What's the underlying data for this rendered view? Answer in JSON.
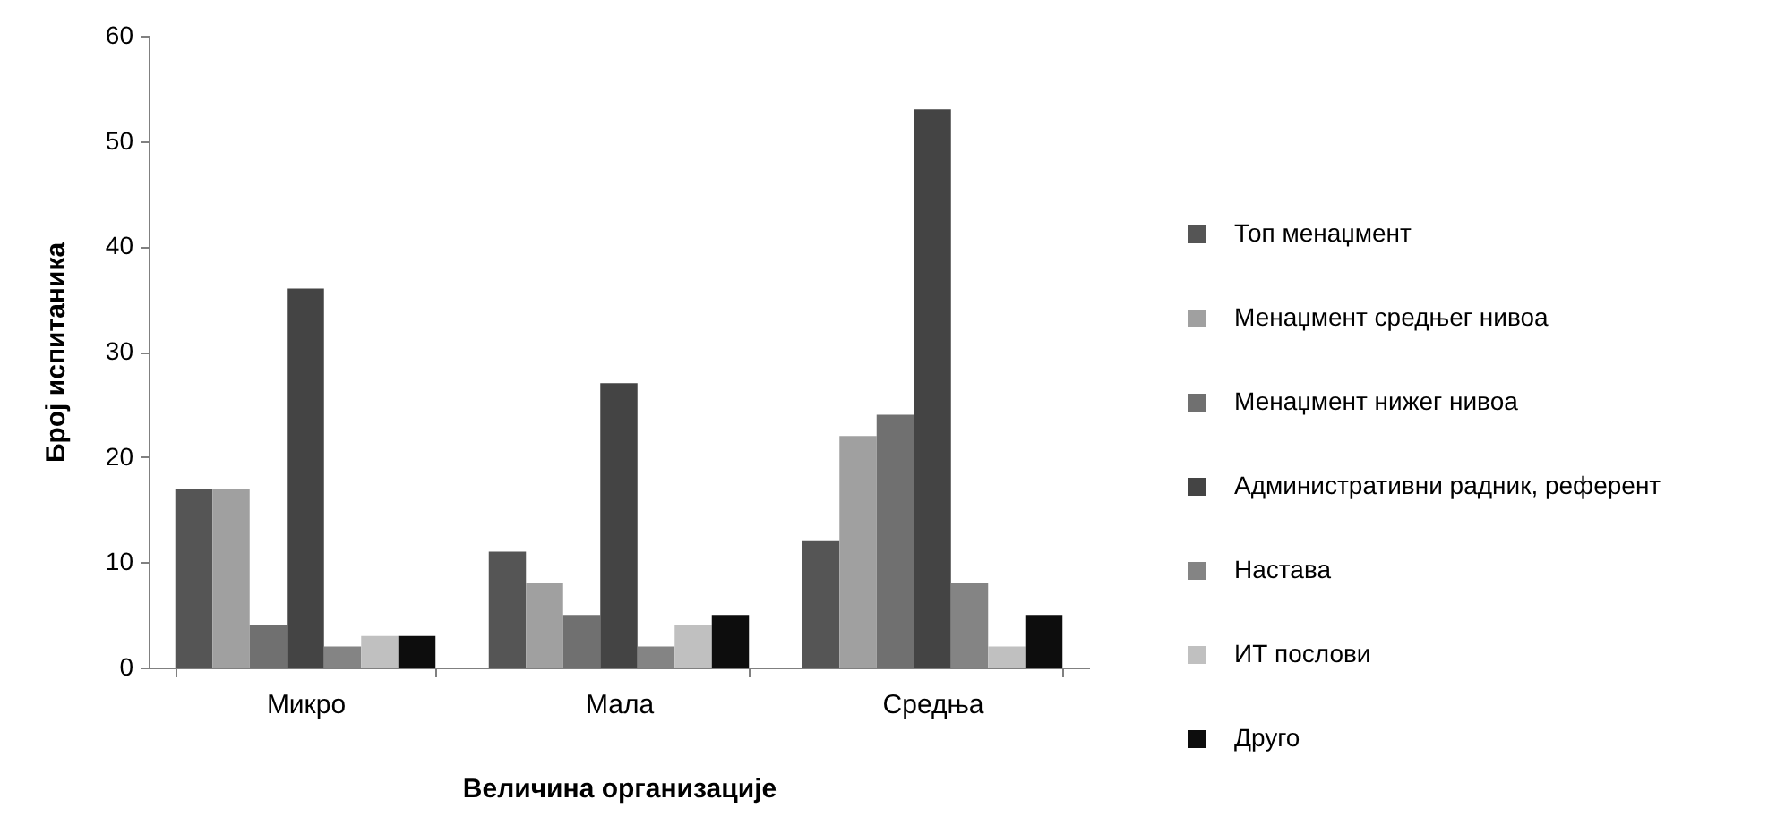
{
  "chart_data": {
    "type": "bar",
    "xlabel": "Величина организације",
    "ylabel": "Број испитаника",
    "categories": [
      "Микро",
      "Мала",
      "Средња"
    ],
    "ylim": [
      0,
      60
    ],
    "yticks": [
      0,
      10,
      20,
      30,
      40,
      50,
      60
    ],
    "legend": "right",
    "series": [
      {
        "name": "Топ менаџмент",
        "color": "#555555",
        "values": [
          17,
          11,
          12
        ]
      },
      {
        "name": "Менаџмент средњег нивоа",
        "color": "#a0a0a0",
        "values": [
          17,
          8,
          22
        ]
      },
      {
        "name": "Менаџмент нижег нивоа",
        "color": "#707070",
        "values": [
          4,
          5,
          24
        ]
      },
      {
        "name": "Административни радник, референт",
        "color": "#444444",
        "values": [
          36,
          27,
          53
        ]
      },
      {
        "name": "Настава",
        "color": "#848484",
        "values": [
          2,
          2,
          8
        ]
      },
      {
        "name": "ИТ послови",
        "color": "#c0c0c0",
        "values": [
          3,
          4,
          2
        ]
      },
      {
        "name": "Друго",
        "color": "#0d0d0d",
        "values": [
          3,
          5,
          5
        ]
      }
    ]
  }
}
